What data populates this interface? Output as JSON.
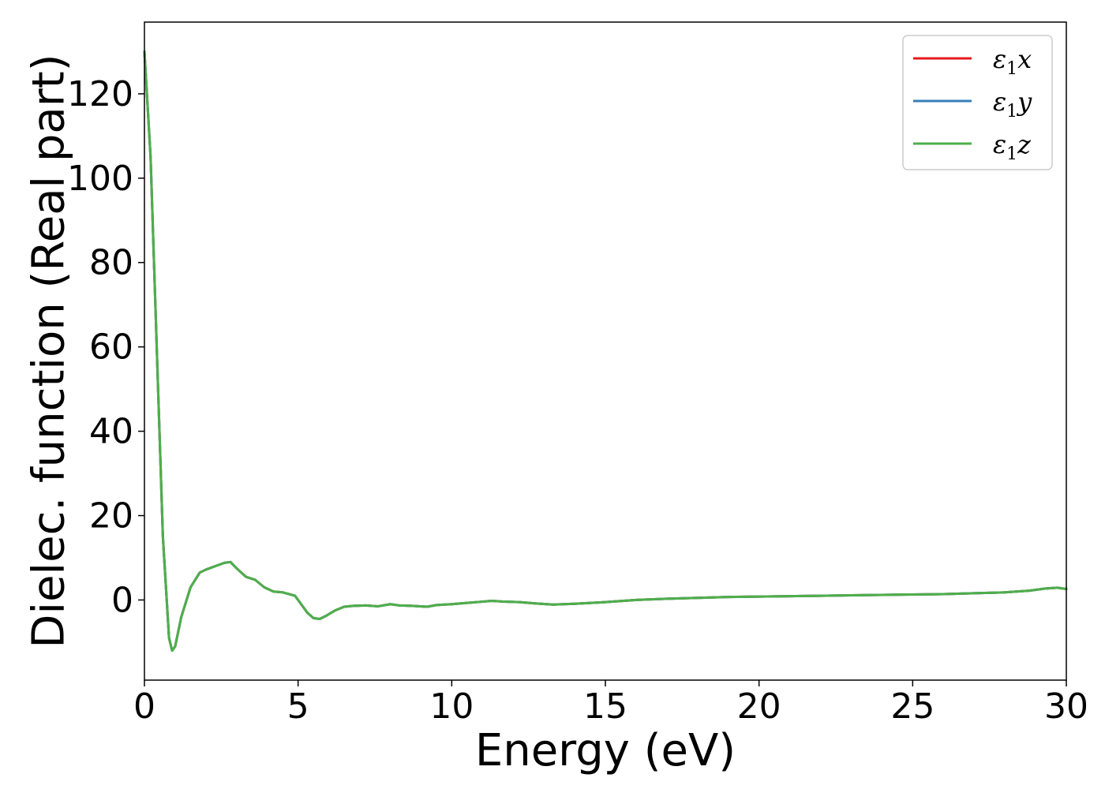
{
  "chart_data": {
    "type": "line",
    "title": "",
    "xlabel": "Energy (eV)",
    "ylabel": "Dielec. function (Real part)",
    "xlim": [
      0,
      30
    ],
    "ylim": [
      -19,
      137
    ],
    "xticks": [
      0,
      5,
      10,
      15,
      20,
      25,
      30
    ],
    "yticks": [
      0,
      20,
      40,
      60,
      80,
      100,
      120
    ],
    "grid": false,
    "legend_position": "top-right",
    "series": [
      {
        "name": "ε1x",
        "legend_label": {
          "base": "ε",
          "sub": "1",
          "suffix": "x"
        },
        "color": "#e41a1c",
        "x": [
          0,
          0.2,
          0.4,
          0.6,
          0.8,
          0.9,
          1.0,
          1.2,
          1.5,
          1.8,
          2.0,
          2.3,
          2.6,
          2.8,
          3.0,
          3.3,
          3.6,
          3.9,
          4.2,
          4.5,
          4.9,
          5.1,
          5.3,
          5.5,
          5.7,
          5.9,
          6.2,
          6.5,
          6.8,
          7.2,
          7.6,
          8.0,
          8.3,
          8.7,
          9.2,
          9.5,
          10.0,
          10.5,
          11.0,
          11.3,
          11.7,
          12.2,
          12.7,
          13.3,
          14.0,
          15.0,
          16.0,
          17.0,
          18.0,
          19.0,
          20.0,
          21.0,
          22.0,
          23.0,
          24.0,
          25.0,
          26.0,
          27.0,
          28.0,
          28.8,
          29.3,
          29.7,
          30.0
        ],
        "y": [
          130,
          105,
          60,
          15,
          -9,
          -12,
          -11,
          -4,
          3,
          6.5,
          7.2,
          8.0,
          8.8,
          9.0,
          7.5,
          5.5,
          4.8,
          3.0,
          2.0,
          1.8,
          1.0,
          -1.0,
          -3.0,
          -4.3,
          -4.5,
          -3.8,
          -2.5,
          -1.6,
          -1.4,
          -1.3,
          -1.5,
          -1.0,
          -1.3,
          -1.4,
          -1.6,
          -1.2,
          -1.0,
          -0.7,
          -0.4,
          -0.2,
          -0.4,
          -0.5,
          -0.8,
          -1.1,
          -0.9,
          -0.5,
          0.0,
          0.3,
          0.5,
          0.7,
          0.8,
          0.9,
          1.0,
          1.1,
          1.2,
          1.3,
          1.4,
          1.6,
          1.8,
          2.2,
          2.7,
          2.9,
          2.6
        ]
      },
      {
        "name": "ε1y",
        "legend_label": {
          "base": "ε",
          "sub": "1",
          "suffix": "y"
        },
        "color": "#377eb8",
        "x": [
          0,
          0.2,
          0.4,
          0.6,
          0.8,
          0.9,
          1.0,
          1.2,
          1.5,
          1.8,
          2.0,
          2.3,
          2.6,
          2.8,
          3.0,
          3.3,
          3.6,
          3.9,
          4.2,
          4.5,
          4.9,
          5.1,
          5.3,
          5.5,
          5.7,
          5.9,
          6.2,
          6.5,
          6.8,
          7.2,
          7.6,
          8.0,
          8.3,
          8.7,
          9.2,
          9.5,
          10.0,
          10.5,
          11.0,
          11.3,
          11.7,
          12.2,
          12.7,
          13.3,
          14.0,
          15.0,
          16.0,
          17.0,
          18.0,
          19.0,
          20.0,
          21.0,
          22.0,
          23.0,
          24.0,
          25.0,
          26.0,
          27.0,
          28.0,
          28.8,
          29.3,
          29.7,
          30.0
        ],
        "y": [
          130,
          105,
          60,
          15,
          -9,
          -12,
          -11,
          -4,
          3,
          6.5,
          7.2,
          8.0,
          8.8,
          9.0,
          7.5,
          5.5,
          4.8,
          3.0,
          2.0,
          1.8,
          1.0,
          -1.0,
          -3.0,
          -4.3,
          -4.5,
          -3.8,
          -2.5,
          -1.6,
          -1.4,
          -1.3,
          -1.5,
          -1.0,
          -1.3,
          -1.4,
          -1.6,
          -1.2,
          -1.0,
          -0.7,
          -0.4,
          -0.2,
          -0.4,
          -0.5,
          -0.8,
          -1.1,
          -0.9,
          -0.5,
          0.0,
          0.3,
          0.5,
          0.7,
          0.8,
          0.9,
          1.0,
          1.1,
          1.2,
          1.3,
          1.4,
          1.6,
          1.8,
          2.2,
          2.7,
          2.9,
          2.6
        ]
      },
      {
        "name": "ε1z",
        "legend_label": {
          "base": "ε",
          "sub": "1",
          "suffix": "z"
        },
        "color": "#4daf4a",
        "x": [
          0,
          0.2,
          0.4,
          0.6,
          0.8,
          0.9,
          1.0,
          1.2,
          1.5,
          1.8,
          2.0,
          2.3,
          2.6,
          2.8,
          3.0,
          3.3,
          3.6,
          3.9,
          4.2,
          4.5,
          4.9,
          5.1,
          5.3,
          5.5,
          5.7,
          5.9,
          6.2,
          6.5,
          6.8,
          7.2,
          7.6,
          8.0,
          8.3,
          8.7,
          9.2,
          9.5,
          10.0,
          10.5,
          11.0,
          11.3,
          11.7,
          12.2,
          12.7,
          13.3,
          14.0,
          15.0,
          16.0,
          17.0,
          18.0,
          19.0,
          20.0,
          21.0,
          22.0,
          23.0,
          24.0,
          25.0,
          26.0,
          27.0,
          28.0,
          28.8,
          29.3,
          29.7,
          30.0
        ],
        "y": [
          130,
          105,
          60,
          15,
          -9,
          -12,
          -11,
          -4,
          3,
          6.5,
          7.2,
          8.0,
          8.8,
          9.0,
          7.5,
          5.5,
          4.8,
          3.0,
          2.0,
          1.8,
          1.0,
          -1.0,
          -3.0,
          -4.3,
          -4.5,
          -3.8,
          -2.5,
          -1.6,
          -1.4,
          -1.3,
          -1.5,
          -1.0,
          -1.3,
          -1.4,
          -1.6,
          -1.2,
          -1.0,
          -0.7,
          -0.4,
          -0.2,
          -0.4,
          -0.5,
          -0.8,
          -1.1,
          -0.9,
          -0.5,
          0.0,
          0.3,
          0.5,
          0.7,
          0.8,
          0.9,
          1.0,
          1.1,
          1.2,
          1.3,
          1.4,
          1.6,
          1.8,
          2.2,
          2.7,
          2.9,
          2.6
        ]
      }
    ]
  }
}
